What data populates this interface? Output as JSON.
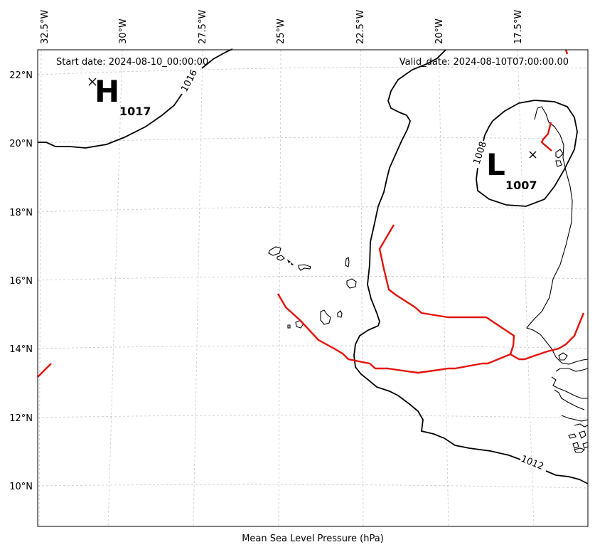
{
  "map": {
    "start_date": "Start date: 2024-08-10_00:00:00",
    "valid_date": "Valid_date: 2024-08-10T07:00:00.00",
    "xlabel": "Mean Sea Level Pressure (hPa)",
    "lon_ticks": [
      "32.5°W",
      "30°W",
      "27.5°W",
      "25°W",
      "22.5°W",
      "20°W",
      "17.5°W"
    ],
    "lat_ticks": [
      "22°N",
      "20°N",
      "18°N",
      "16°N",
      "14°N",
      "12°N",
      "10°N"
    ],
    "centers": [
      {
        "letter": "H",
        "value": "1017"
      },
      {
        "letter": "L",
        "value": "1007"
      }
    ],
    "isobars": [
      {
        "label": "1016"
      },
      {
        "label": "1008"
      },
      {
        "label": "1012"
      }
    ],
    "colors": {
      "isobar": "#000000",
      "front": "#e3120b",
      "grid": "#c8c8c8"
    }
  }
}
